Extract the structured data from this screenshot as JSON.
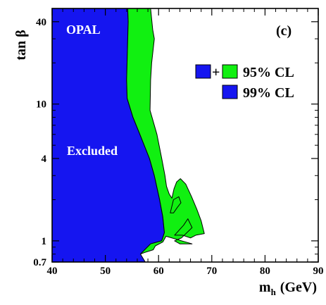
{
  "chart_data": {
    "type": "area",
    "title": "",
    "xlabel": "m",
    "xlabel_sub": "h",
    "xlabel_unit": "(GeV)",
    "ylabel": "tan β",
    "x_range": [
      40,
      90
    ],
    "y_range": [
      0.7,
      50
    ],
    "y_scale": "log",
    "grid": false,
    "x_ticks": [
      40,
      50,
      60,
      70,
      80,
      90
    ],
    "y_ticks": [
      {
        "value": 0.7,
        "label": "0.7"
      },
      {
        "value": 1,
        "label": "1"
      },
      {
        "value": 4,
        "label": "4"
      },
      {
        "value": 10,
        "label": "10"
      },
      {
        "value": 40,
        "label": "40"
      }
    ],
    "annotations": {
      "experiment": "OPAL",
      "panel": "(c)",
      "excluded": "Excluded"
    },
    "legend": {
      "placement": "top-right",
      "entries": [
        {
          "label": "95% CL",
          "plus_sign": "+",
          "colors": [
            "#1515f0",
            "#11f011"
          ]
        },
        {
          "label": "99% CL",
          "colors": [
            "#1515f0"
          ]
        }
      ]
    },
    "regions": [
      {
        "id": "excluded-99",
        "color": "#1515f0",
        "points": [
          [
            40,
            0.7
          ],
          [
            40,
            50
          ],
          [
            54.2,
            50
          ],
          [
            54.3,
            40
          ],
          [
            54.0,
            15
          ],
          [
            54.1,
            11
          ],
          [
            55.2,
            8
          ],
          [
            56.5,
            6
          ],
          [
            58.3,
            4
          ],
          [
            59.2,
            3
          ],
          [
            60.2,
            2
          ],
          [
            60.8,
            1.5
          ],
          [
            61.1,
            1.15
          ],
          [
            60.6,
            1.0
          ],
          [
            58.5,
            0.95
          ],
          [
            56.6,
            0.8
          ],
          [
            57.5,
            0.7
          ]
        ]
      },
      {
        "id": "excluded-95-only",
        "color": "#11f011",
        "points": [
          [
            54.2,
            50
          ],
          [
            58.5,
            50
          ],
          [
            58.9,
            35
          ],
          [
            59.2,
            30
          ],
          [
            58.7,
            20
          ],
          [
            58.5,
            15
          ],
          [
            58.4,
            9
          ],
          [
            59.7,
            6
          ],
          [
            60.6,
            4
          ],
          [
            61.2,
            3
          ],
          [
            61.5,
            2.5
          ],
          [
            62.0,
            2.2
          ],
          [
            62.5,
            2.05
          ],
          [
            62.9,
            2.4
          ],
          [
            63.4,
            2.7
          ],
          [
            64.1,
            2.85
          ],
          [
            65.1,
            2.6
          ],
          [
            66.2,
            2.1
          ],
          [
            67.2,
            1.7
          ],
          [
            68.0,
            1.4
          ],
          [
            68.6,
            1.13
          ],
          [
            67.0,
            1.1
          ],
          [
            66.0,
            1.05
          ],
          [
            64.5,
            1.1
          ],
          [
            63.0,
            1.1
          ],
          [
            64.7,
            1.3
          ],
          [
            65.5,
            1.45
          ],
          [
            66.3,
            1.25
          ],
          [
            64.3,
            1.05
          ],
          [
            63.0,
            1.0
          ],
          [
            64.0,
            0.95
          ],
          [
            66.3,
            0.95
          ],
          [
            61.4,
            1.08
          ],
          [
            60.8,
            0.98
          ],
          [
            59.4,
            0.92
          ],
          [
            59.0,
            0.86
          ],
          [
            57.3,
            0.82
          ],
          [
            56.6,
            0.8
          ],
          [
            58.5,
            0.95
          ],
          [
            60.6,
            1.0
          ],
          [
            61.1,
            1.15
          ],
          [
            60.8,
            1.5
          ],
          [
            60.2,
            2.0
          ],
          [
            59.2,
            3.0
          ],
          [
            58.3,
            4.0
          ],
          [
            56.5,
            6.0
          ],
          [
            55.2,
            8.0
          ],
          [
            54.1,
            11
          ],
          [
            54.0,
            15
          ],
          [
            54.3,
            40
          ]
        ]
      },
      {
        "id": "green-inner-island",
        "color": "#11f011",
        "points": [
          [
            62.2,
            1.6
          ],
          [
            62.8,
            2.0
          ],
          [
            63.8,
            2.1
          ],
          [
            64.2,
            1.9
          ],
          [
            63.5,
            1.75
          ],
          [
            62.8,
            1.6
          ]
        ]
      }
    ]
  }
}
